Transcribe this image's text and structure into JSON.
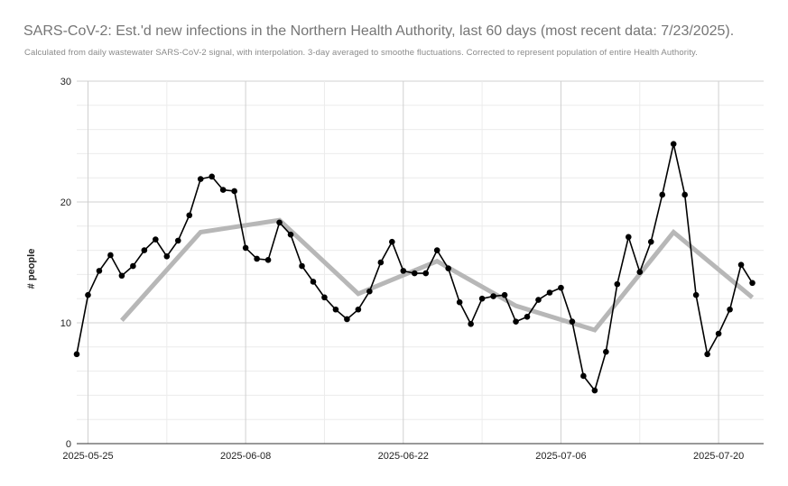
{
  "chart_data": {
    "type": "line",
    "title": "SARS-CoV-2: Est.'d new infections in the Northern Health Authority, last 60 days (most recent data: 7/23/2025).",
    "subtitle": "Calculated from daily wastewater SARS-CoV-2 signal, with interpolation. 3-day averaged to smoothe fluctuations. Corrected to represent population of entire Health Authority.",
    "ylabel": "# people",
    "xlabel": "",
    "ylim": [
      0,
      30
    ],
    "yticks": [
      0,
      10,
      20,
      30
    ],
    "xticks": [
      "2025-05-25",
      "2025-06-08",
      "2025-06-22",
      "2025-07-06",
      "2025-07-20"
    ],
    "grid": true,
    "colors": {
      "daily": "#000000",
      "trend": "#b7b7b7",
      "grid": "#d9d9d9"
    },
    "series": [
      {
        "style": "line-with-markers",
        "x": [
          "2025-05-24",
          "2025-05-25",
          "2025-05-26",
          "2025-05-27",
          "2025-05-28",
          "2025-05-29",
          "2025-05-30",
          "2025-05-31",
          "2025-06-01",
          "2025-06-02",
          "2025-06-03",
          "2025-06-04",
          "2025-06-05",
          "2025-06-06",
          "2025-06-07",
          "2025-06-08",
          "2025-06-09",
          "2025-06-10",
          "2025-06-11",
          "2025-06-12",
          "2025-06-13",
          "2025-06-14",
          "2025-06-15",
          "2025-06-16",
          "2025-06-17",
          "2025-06-18",
          "2025-06-19",
          "2025-06-20",
          "2025-06-21",
          "2025-06-22",
          "2025-06-23",
          "2025-06-24",
          "2025-06-25",
          "2025-06-26",
          "2025-06-27",
          "2025-06-28",
          "2025-06-29",
          "2025-06-30",
          "2025-07-01",
          "2025-07-02",
          "2025-07-03",
          "2025-07-04",
          "2025-07-05",
          "2025-07-06",
          "2025-07-07",
          "2025-07-08",
          "2025-07-09",
          "2025-07-10",
          "2025-07-11",
          "2025-07-12",
          "2025-07-13",
          "2025-07-14",
          "2025-07-15",
          "2025-07-16",
          "2025-07-17",
          "2025-07-18",
          "2025-07-19",
          "2025-07-20",
          "2025-07-21",
          "2025-07-22",
          "2025-07-23"
        ],
        "values": [
          7.4,
          12.3,
          14.3,
          15.6,
          13.9,
          14.7,
          16.0,
          16.9,
          15.5,
          16.8,
          18.9,
          21.9,
          22.1,
          21.0,
          20.9,
          16.2,
          15.3,
          15.2,
          18.3,
          17.3,
          14.7,
          13.4,
          12.1,
          11.1,
          10.3,
          11.1,
          12.6,
          15.0,
          16.7,
          14.3,
          14.1,
          14.1,
          16.0,
          14.5,
          11.7,
          9.9,
          12.0,
          12.2,
          12.3,
          10.1,
          10.5,
          11.9,
          12.5,
          12.9,
          10.1,
          5.6,
          4.4,
          7.6,
          13.2,
          17.1,
          14.2,
          16.7,
          20.6,
          24.8,
          20.6,
          12.3,
          7.4,
          9.1,
          11.1,
          14.8,
          13.3
        ]
      },
      {
        "style": "trend-line",
        "x": [
          "2025-05-28",
          "2025-06-04",
          "2025-06-11",
          "2025-06-18",
          "2025-06-25",
          "2025-07-02",
          "2025-07-09",
          "2025-07-16",
          "2025-07-23"
        ],
        "values": [
          10.2,
          17.5,
          18.5,
          12.4,
          15.1,
          11.4,
          9.4,
          17.5,
          12.1
        ]
      }
    ]
  }
}
